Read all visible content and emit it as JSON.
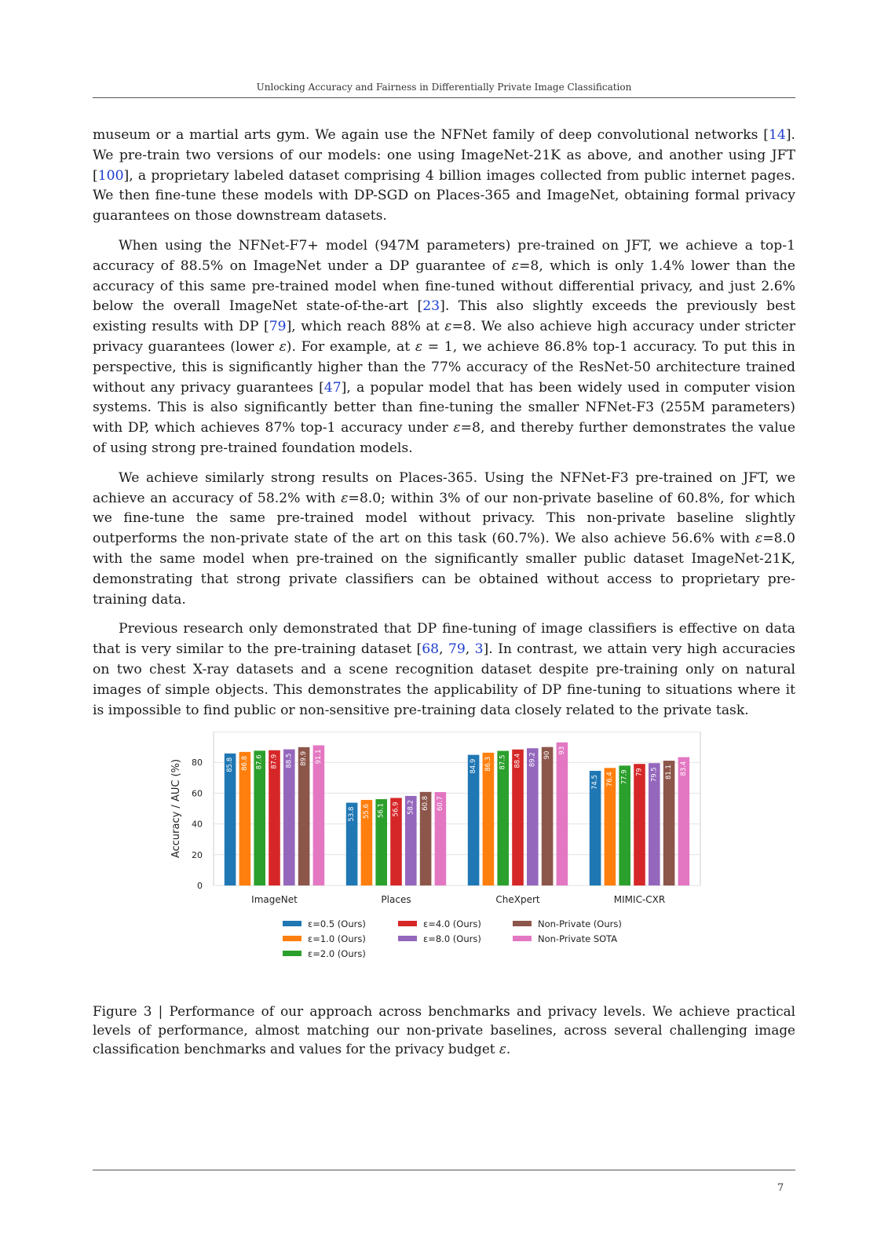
{
  "header": {
    "running_title": "Unlocking Accuracy and Fairness in Differentially Private Image Classification"
  },
  "paragraphs": [
    {
      "indent": false,
      "segments": [
        {
          "t": "museum or a martial arts gym. We again use the NFNet family of deep convolutional networks ["
        },
        {
          "t": "14",
          "c": true
        },
        {
          "t": "]. We pre-train two versions of our models: one using ImageNet-21K as above, and another using JFT ["
        },
        {
          "t": "100",
          "c": true
        },
        {
          "t": "], a proprietary labeled dataset comprising 4 billion images collected from public internet pages. We then fine-tune these models with DP-SGD on Places-365 and ImageNet, obtaining formal privacy guarantees on those downstream datasets."
        }
      ]
    },
    {
      "indent": true,
      "segments": [
        {
          "t": "When using the NFNet-F7+ model (947M parameters) pre-trained on JFT, we achieve a top-1 accuracy of 88.5% on ImageNet under a DP guarantee of "
        },
        {
          "t": "ε",
          "e": true
        },
        {
          "t": "=8, which is only 1.4% lower than the accuracy of this same pre-trained model when fine-tuned without differential privacy, and just 2.6% below the overall ImageNet state-of-the-art ["
        },
        {
          "t": "23",
          "c": true
        },
        {
          "t": "]. This also slightly exceeds the previously best existing results with DP ["
        },
        {
          "t": "79",
          "c": true
        },
        {
          "t": "], which reach 88% at "
        },
        {
          "t": "ε",
          "e": true
        },
        {
          "t": "=8. We also achieve high accuracy under stricter privacy guarantees (lower "
        },
        {
          "t": "ε",
          "e": true
        },
        {
          "t": "). For example, at "
        },
        {
          "t": "ε",
          "e": true
        },
        {
          "t": " = 1, we achieve 86.8% top-1 accuracy. To put this in perspective, this is significantly higher than the 77% accuracy of the ResNet-50 architecture trained without any privacy guarantees ["
        },
        {
          "t": "47",
          "c": true
        },
        {
          "t": "], a popular model that has been widely used in computer vision systems. This is also significantly better than fine-tuning the smaller NFNet-F3 (255M parameters) with DP, which achieves 87% top-1 accuracy under "
        },
        {
          "t": "ε",
          "e": true
        },
        {
          "t": "=8, and thereby further demonstrates the value of using strong pre-trained foundation models."
        }
      ]
    },
    {
      "indent": true,
      "segments": [
        {
          "t": "We achieve similarly strong results on Places-365. Using the NFNet-F3 pre-trained on JFT, we achieve an accuracy of 58.2% with "
        },
        {
          "t": "ε",
          "e": true
        },
        {
          "t": "=8.0; within 3% of our non-private baseline of 60.8%, for which we fine-tune the same pre-trained model without privacy. This non-private baseline slightly outperforms the non-private state of the art on this task (60.7%). We also achieve 56.6% with "
        },
        {
          "t": "ε",
          "e": true
        },
        {
          "t": "=8.0 with the same model when pre-trained on the significantly smaller public dataset ImageNet-21K, demonstrating that strong private classifiers can be obtained without access to proprietary pre-training data."
        }
      ]
    },
    {
      "indent": true,
      "segments": [
        {
          "t": "Previous research only demonstrated that DP fine-tuning of image classifiers is effective on data that is very similar to the pre-training dataset ["
        },
        {
          "t": "68",
          "c": true
        },
        {
          "t": ", "
        },
        {
          "t": "79",
          "c": true
        },
        {
          "t": ", "
        },
        {
          "t": "3",
          "c": true
        },
        {
          "t": "]. In contrast, we attain very high accuracies on two chest X-ray datasets and a scene recognition dataset despite pre-training only on natural images of simple objects. This demonstrates the applicability of DP fine-tuning to situations where it is impossible to find public or non-sensitive pre-training data closely related to the private task."
        }
      ]
    }
  ],
  "chart_data": {
    "type": "bar",
    "ylabel": "Accuracy / AUC (%)",
    "ylim": [
      0,
      100
    ],
    "yticks": [
      0,
      20,
      40,
      60,
      80
    ],
    "grid": true,
    "legend_position": "bottom",
    "categories": [
      "ImageNet",
      "Places",
      "CheXpert",
      "MIMIC-CXR"
    ],
    "series": [
      {
        "name": "ε=0.5 (Ours)",
        "color": "#1f77b4",
        "values": [
          85.8,
          53.8,
          84.9,
          74.5
        ]
      },
      {
        "name": "ε=1.0 (Ours)",
        "color": "#ff7f0e",
        "values": [
          86.8,
          55.6,
          86.3,
          76.4
        ]
      },
      {
        "name": "ε=2.0 (Ours)",
        "color": "#2ca02c",
        "values": [
          87.6,
          56.1,
          87.5,
          77.9
        ]
      },
      {
        "name": "ε=4.0 (Ours)",
        "color": "#d62728",
        "values": [
          87.9,
          56.9,
          88.4,
          79.0
        ]
      },
      {
        "name": "ε=8.0 (Ours)",
        "color": "#9467bd",
        "values": [
          88.5,
          58.2,
          89.2,
          79.5
        ]
      },
      {
        "name": "Non-Private (Ours)",
        "color": "#8c564b",
        "values": [
          89.9,
          60.8,
          90.0,
          81.1
        ]
      },
      {
        "name": "Non-Private SOTA",
        "color": "#e377c2",
        "values": [
          91.1,
          60.7,
          93.0,
          83.4
        ]
      }
    ]
  },
  "caption": {
    "label": "Figure 3 | ",
    "text_before": "Performance of our approach across benchmarks and privacy levels. We achieve practical levels of performance, almost matching our non-private baselines, across several challenging image classification benchmarks and values for the privacy budget ",
    "epsilon": "ε",
    "text_after": "."
  },
  "footer": {
    "page_number": "7"
  }
}
